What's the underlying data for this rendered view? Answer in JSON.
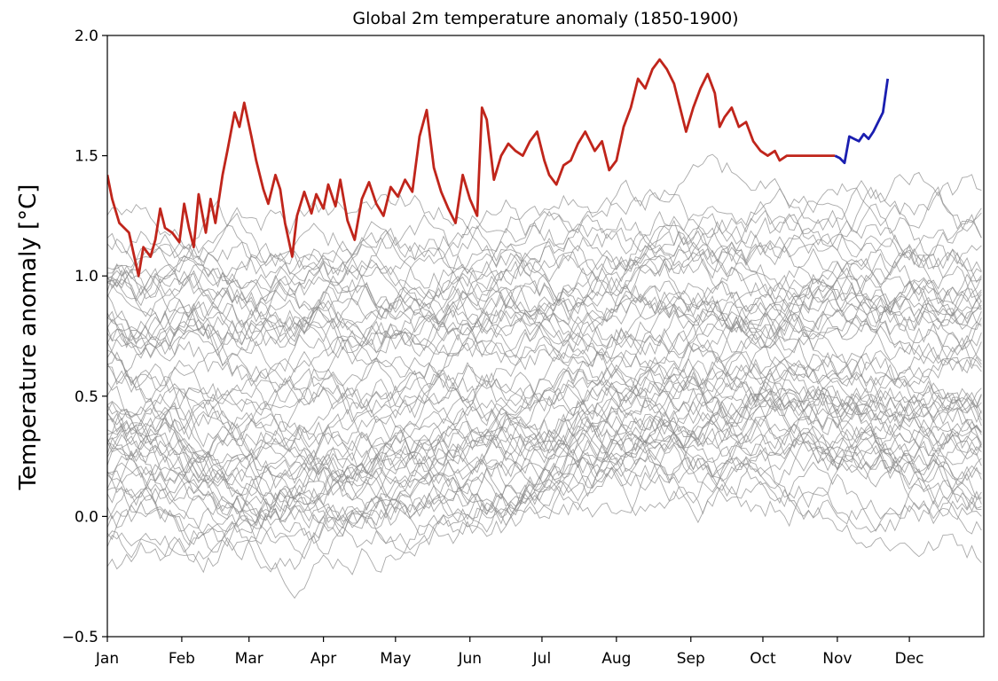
{
  "chart_data": {
    "type": "line",
    "title": "Global 2m temperature anomaly (1850-1900)",
    "xlabel": "",
    "ylabel": "Temperature anomaly [°C]",
    "x_unit": "day of year",
    "xlim": [
      1,
      366
    ],
    "ylim": [
      -0.5,
      2.0
    ],
    "yticks": [
      -0.5,
      0.0,
      0.5,
      1.0,
      1.5,
      2.0
    ],
    "ytick_labels": [
      "−0.5",
      "0.0",
      "0.5",
      "1.0",
      "1.5",
      "2.0"
    ],
    "xticks": [
      1,
      32,
      60,
      91,
      121,
      152,
      182,
      213,
      244,
      274,
      305,
      335
    ],
    "xtick_labels": [
      "Jan",
      "Feb",
      "Mar",
      "Apr",
      "May",
      "Jun",
      "Jul",
      "Aug",
      "Sep",
      "Oct",
      "Nov",
      "Dec"
    ],
    "grid": false,
    "legend": "none",
    "background_series": {
      "description_count": 60,
      "color": "#8c8c8c",
      "note": "gray lines: one per historical year, values ranging roughly -0.4 to 1.9"
    },
    "series": [
      {
        "color": "#c0251b",
        "x": [
          1,
          3,
          6,
          10,
          14,
          16,
          19,
          21,
          23,
          25,
          28,
          31,
          33,
          35,
          37,
          39,
          42,
          44,
          46,
          49,
          51,
          54,
          56,
          58,
          61,
          63,
          66,
          68,
          71,
          73,
          75,
          78,
          80,
          83,
          86,
          88,
          91,
          93,
          96,
          98,
          101,
          104,
          107,
          110,
          113,
          116,
          119,
          122,
          125,
          128,
          131,
          134,
          137,
          140,
          143,
          146,
          149,
          152,
          155,
          157,
          159,
          162,
          165,
          168,
          171,
          174,
          177,
          180,
          183,
          185,
          188,
          191,
          194,
          197,
          200,
          204,
          207,
          210,
          213,
          216,
          219,
          222,
          225,
          228,
          231,
          234,
          237,
          239,
          242,
          245,
          248,
          251,
          254,
          256,
          258,
          261,
          264,
          267,
          270,
          273,
          276,
          279,
          281,
          284,
          287,
          290,
          293,
          296,
          299,
          302,
          304
        ],
        "y": [
          1.42,
          1.32,
          1.22,
          1.18,
          1.0,
          1.12,
          1.08,
          1.15,
          1.28,
          1.2,
          1.18,
          1.14,
          1.3,
          1.2,
          1.12,
          1.34,
          1.18,
          1.32,
          1.22,
          1.42,
          1.52,
          1.68,
          1.62,
          1.72,
          1.58,
          1.48,
          1.36,
          1.3,
          1.42,
          1.36,
          1.22,
          1.08,
          1.25,
          1.35,
          1.26,
          1.34,
          1.28,
          1.38,
          1.29,
          1.4,
          1.23,
          1.15,
          1.32,
          1.39,
          1.3,
          1.25,
          1.37,
          1.33,
          1.4,
          1.35,
          1.58,
          1.69,
          1.45,
          1.35,
          1.28,
          1.22,
          1.42,
          1.32,
          1.25,
          1.7,
          1.65,
          1.4,
          1.5,
          1.55,
          1.52,
          1.5,
          1.56,
          1.6,
          1.48,
          1.42,
          1.38,
          1.46,
          1.48,
          1.55,
          1.6,
          1.52,
          1.56,
          1.44,
          1.48,
          1.62,
          1.7,
          1.82,
          1.78,
          1.86,
          1.9,
          1.86,
          1.8,
          1.72,
          1.6,
          1.7,
          1.78,
          1.84,
          1.76,
          1.62,
          1.66,
          1.7,
          1.62,
          1.64,
          1.56,
          1.52,
          1.5,
          1.52,
          1.48,
          1.5,
          1.5,
          1.5,
          1.5,
          1.5,
          1.5,
          1.5,
          1.5
        ],
        "trim_to": 304
      },
      {
        "color": "#1a1eb0",
        "x": [
          304,
          306,
          308,
          310,
          312,
          314,
          316,
          318,
          320,
          322,
          324,
          326
        ],
        "y": [
          1.5,
          1.49,
          1.47,
          1.58,
          1.57,
          1.56,
          1.59,
          1.57,
          1.6,
          1.64,
          1.68,
          1.82
        ]
      }
    ]
  }
}
